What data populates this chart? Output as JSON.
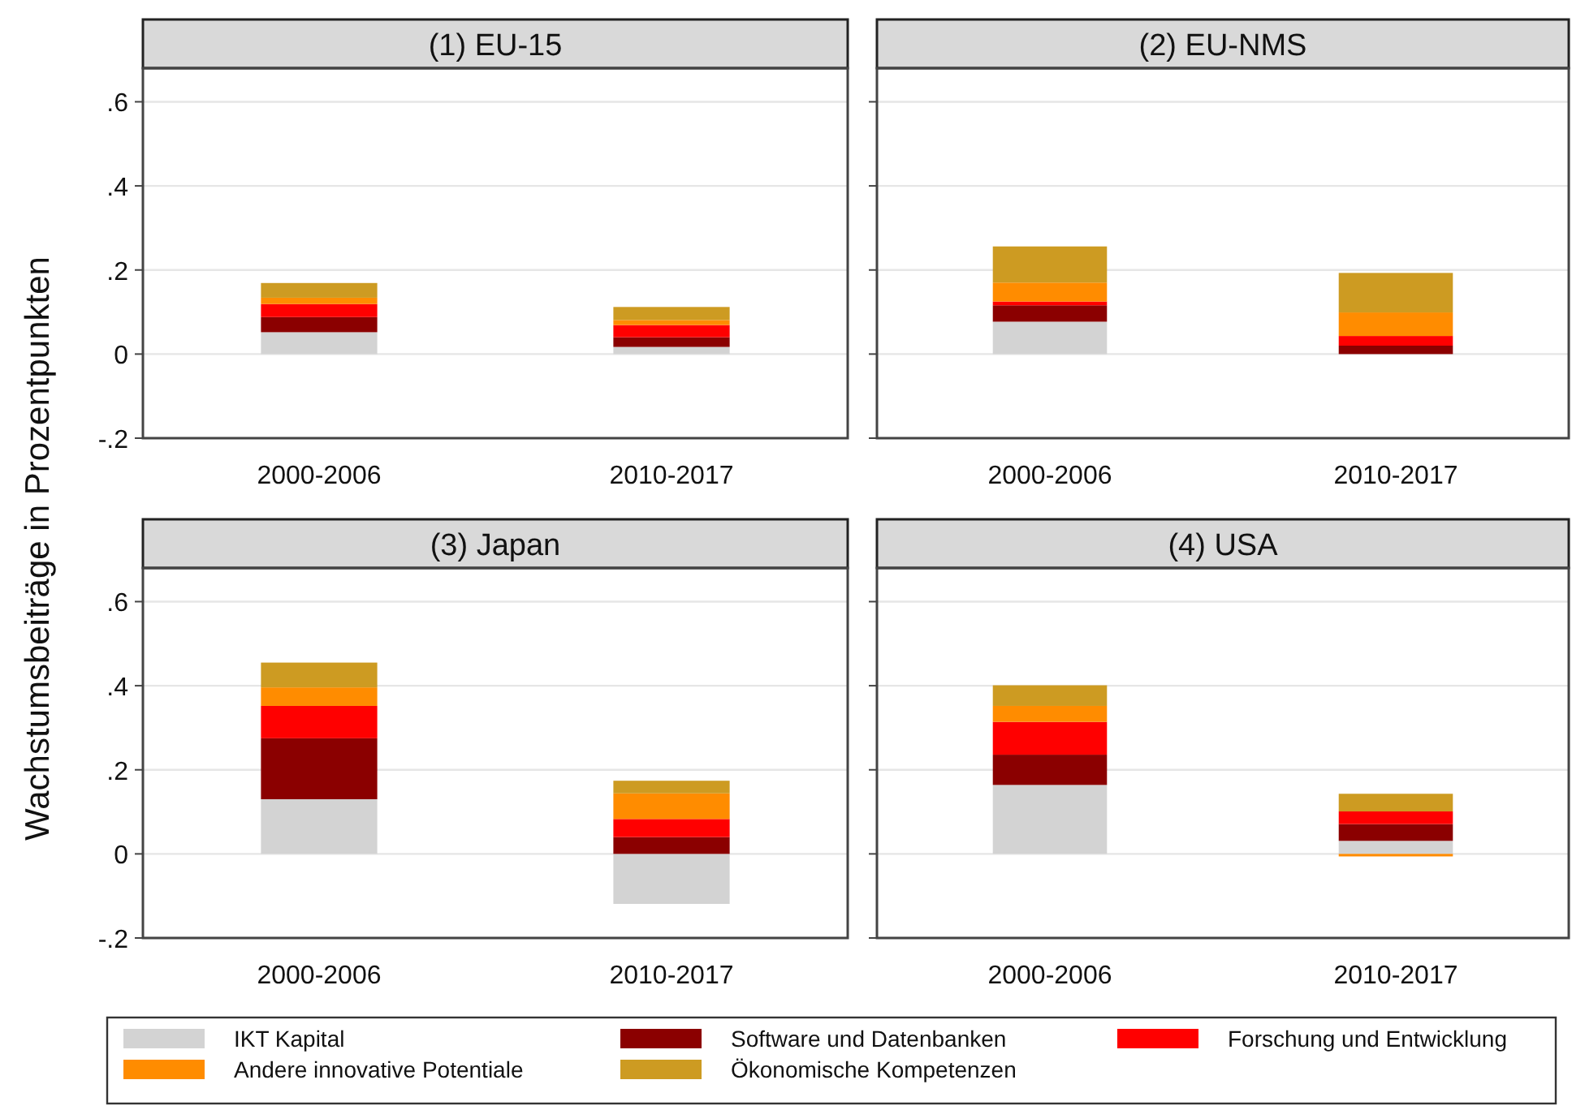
{
  "chart_data": [
    {
      "type": "bar",
      "title": "(1) EU-15",
      "ylabel": "Wachstumsbeiträge in Prozentpunkten",
      "stacked": true,
      "categories": [
        "2000-2006",
        "2010-2017"
      ],
      "ylim": [
        -0.2,
        0.68
      ],
      "yticks": [
        {
          "value": -0.2,
          "label": "-.2"
        },
        0,
        {
          "value": 0.2,
          "label": ".2"
        },
        {
          "value": 0.4,
          "label": ".4"
        },
        {
          "value": 0.6,
          "label": ".6"
        }
      ],
      "grid": "y",
      "legend": "bottom",
      "series": [
        {
          "name": "IKT Kapital",
          "color": "#d3d3d3",
          "values": [
            0.052,
            0.017
          ]
        },
        {
          "name": "Software und Datenbanken",
          "color": "#8b0000",
          "values": [
            0.036,
            0.023
          ]
        },
        {
          "name": "Forschung und Entwicklung",
          "color": "#ff0000",
          "values": [
            0.031,
            0.029
          ]
        },
        {
          "name": "Andere innovative Potentiale",
          "color": "#ff8c00",
          "values": [
            0.015,
            0.012
          ]
        },
        {
          "name": "Ökonomische Kompetenzen",
          "color": "#cd9b22",
          "values": [
            0.035,
            0.031
          ]
        }
      ]
    },
    {
      "type": "bar",
      "title": "(2) EU-NMS",
      "stacked": true,
      "categories": [
        "2000-2006",
        "2010-2017"
      ],
      "ylim": [
        -0.2,
        0.68
      ],
      "yticks": [
        {
          "value": -0.2,
          "label": null
        },
        {
          "value": 0,
          "label": null
        },
        {
          "value": 0.2,
          "label": null
        },
        {
          "value": 0.4,
          "label": null
        },
        {
          "value": 0.6,
          "label": null
        }
      ],
      "grid": "y",
      "tick_labels": "x",
      "series": [
        {
          "color": "#d3d3d3",
          "values": [
            0.077,
            null
          ]
        },
        {
          "color": "#8b0000",
          "values": [
            0.039,
            0.02
          ]
        },
        {
          "color": "#ff0000",
          "values": [
            0.009,
            0.023
          ]
        },
        {
          "color": "#ff8c00",
          "values": [
            0.045,
            0.056
          ]
        },
        {
          "color": "#cd9b22",
          "values": [
            0.086,
            0.094
          ]
        }
      ]
    },
    {
      "type": "bar",
      "title": "(3) Japan",
      "stacked": true,
      "categories": [
        "2000-2006",
        "2010-2017"
      ],
      "ylim": [
        -0.2,
        0.68
      ],
      "yticks": [
        {
          "value": -0.2,
          "label": "-.2"
        },
        0,
        {
          "value": 0.2,
          "label": ".2"
        },
        {
          "value": 0.4,
          "label": ".4"
        },
        {
          "value": 0.6,
          "label": ".6"
        }
      ],
      "grid": "y",
      "series": [
        {
          "color": "#d3d3d3",
          "values": [
            0.13,
            -0.119
          ]
        },
        {
          "color": "#8b0000",
          "values": [
            0.145,
            0.04
          ]
        },
        {
          "color": "#ff0000",
          "values": [
            0.077,
            0.043
          ]
        },
        {
          "color": "#ff8c00",
          "values": [
            0.044,
            0.061
          ]
        },
        {
          "color": "#cd9b22",
          "values": [
            0.059,
            0.03
          ]
        }
      ]
    },
    {
      "type": "bar",
      "title": "(4) USA",
      "stacked": true,
      "categories": [
        "2000-2006",
        "2010-2017"
      ],
      "ylim": [
        -0.2,
        0.68
      ],
      "yticks": [
        {
          "value": -0.2,
          "label": null
        },
        {
          "value": 0,
          "label": null
        },
        {
          "value": 0.2,
          "label": null
        },
        {
          "value": 0.4,
          "label": null
        },
        {
          "value": 0.6,
          "label": null
        }
      ],
      "grid": "y",
      "tick_labels": "x",
      "series": [
        {
          "color": "#d3d3d3",
          "values": [
            0.164,
            0.031
          ]
        },
        {
          "color": "#8b0000",
          "values": [
            0.072,
            0.04
          ]
        },
        {
          "color": "#ff0000",
          "values": [
            0.078,
            0.03
          ]
        },
        {
          "color": "#ff8c00",
          "values": [
            0.038,
            -0.006
          ]
        },
        {
          "color": "#cd9b22",
          "values": [
            0.049,
            0.042
          ]
        }
      ]
    }
  ]
}
